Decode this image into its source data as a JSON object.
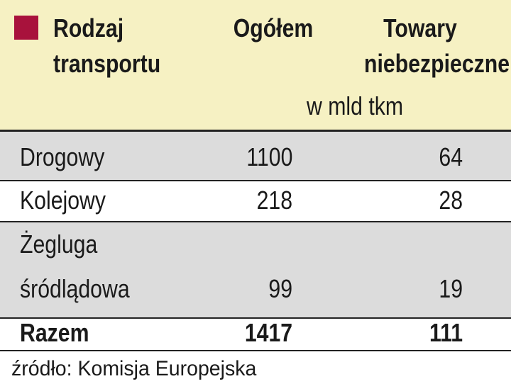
{
  "header": {
    "col1": [
      "Rodzaj",
      "transportu"
    ],
    "col2": "Ogółem",
    "col3": [
      "Towary",
      "niebezpieczne"
    ],
    "unit": "w mld tkm"
  },
  "table": {
    "rows": [
      [
        [
          "Drogowy"
        ],
        1100,
        64
      ],
      [
        [
          "Kolejowy"
        ],
        218,
        28
      ],
      [
        [
          "Żegluga",
          "śródlądowa"
        ],
        99,
        19
      ]
    ],
    "total": [
      "Razem",
      1417,
      111
    ]
  },
  "source": "źródło: Komisja Europejska"
}
